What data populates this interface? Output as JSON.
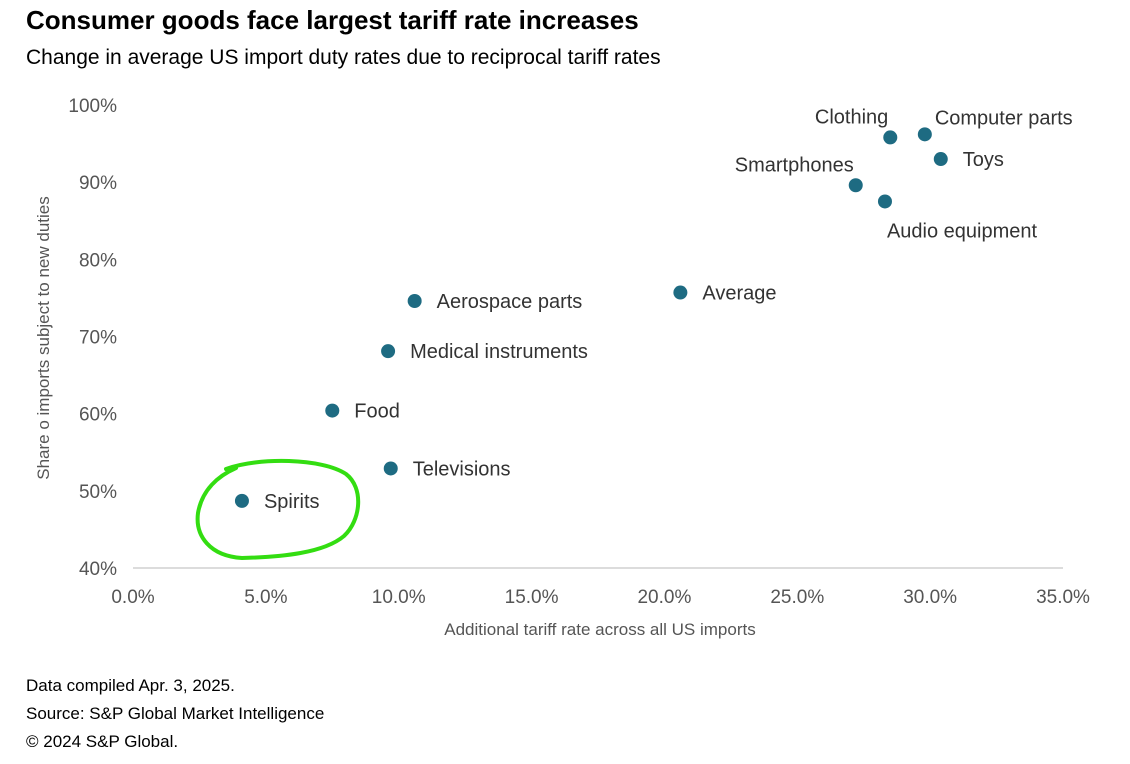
{
  "chart_data": {
    "type": "scatter",
    "title": "Consumer goods face largest tariff rate increases",
    "subtitle": "Change in average US import duty rates due to reciprocal tariff rates",
    "xlabel": "Additional tariff rate across all US imports",
    "ylabel": "Share o imports subject to new duties",
    "xlim": [
      0,
      35
    ],
    "ylim": [
      40,
      100
    ],
    "x_ticks": [
      "0.0%",
      "5.0%",
      "10.0%",
      "15.0%",
      "20.0%",
      "25.0%",
      "30.0%",
      "35.0%"
    ],
    "y_ticks": [
      "40%",
      "50%",
      "60%",
      "70%",
      "80%",
      "90%",
      "100%"
    ],
    "grid": false,
    "marker_color": "#1e6b82",
    "points": [
      {
        "label": "Clothing",
        "x": 28.5,
        "y": 95.8,
        "label_pos": "above-left"
      },
      {
        "label": "Computer parts",
        "x": 29.8,
        "y": 96.2,
        "label_pos": "above-right"
      },
      {
        "label": "Toys",
        "x": 30.4,
        "y": 93.0,
        "label_pos": "right"
      },
      {
        "label": "Smartphones",
        "x": 27.2,
        "y": 89.6,
        "label_pos": "above-left"
      },
      {
        "label": "Audio equipment",
        "x": 28.3,
        "y": 87.5,
        "label_pos": "below-right"
      },
      {
        "label": "Average",
        "x": 20.6,
        "y": 75.7,
        "label_pos": "right"
      },
      {
        "label": "Aerospace parts",
        "x": 10.6,
        "y": 74.6,
        "label_pos": "right"
      },
      {
        "label": "Medical instruments",
        "x": 9.6,
        "y": 68.1,
        "label_pos": "right"
      },
      {
        "label": "Food",
        "x": 7.5,
        "y": 60.4,
        "label_pos": "right"
      },
      {
        "label": "Televisions",
        "x": 9.7,
        "y": 52.9,
        "label_pos": "right"
      },
      {
        "label": "Spirits",
        "x": 4.1,
        "y": 48.7,
        "label_pos": "right"
      }
    ],
    "annotation": {
      "type": "hand-drawn-circle",
      "target": "Spirits",
      "color": "#33dd11"
    }
  },
  "footer": {
    "line1": "Data compiled Apr. 3, 2025.",
    "line2": "Source: S&P Global Market Intelligence",
    "line3": "© 2024 S&P Global."
  }
}
